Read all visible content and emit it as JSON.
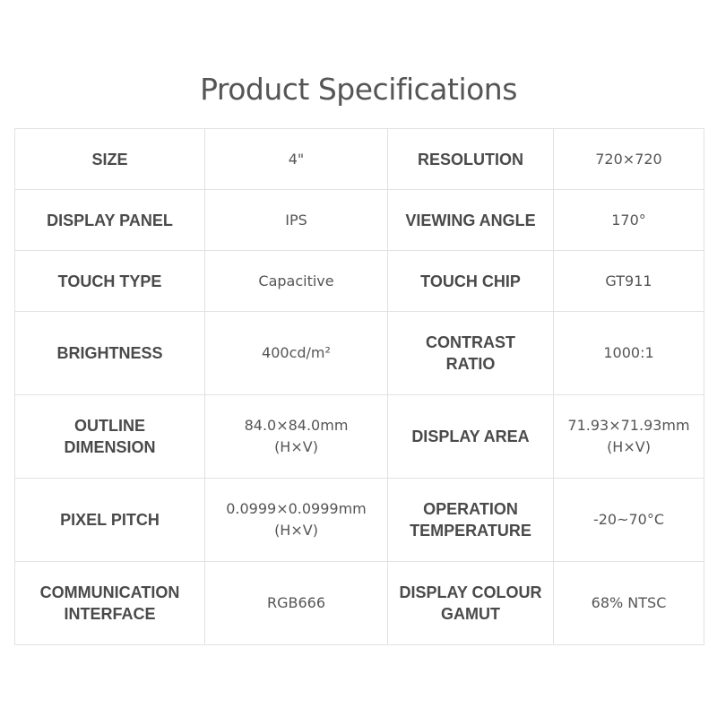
{
  "title": "Product Specifications",
  "rows": [
    [
      {
        "label": "SIZE",
        "value": [
          "4\""
        ]
      },
      {
        "label": "RESOLUTION",
        "value": [
          "720×720"
        ]
      }
    ],
    [
      {
        "label": "DISPLAY PANEL",
        "value": [
          "IPS"
        ]
      },
      {
        "label": "VIEWING ANGLE",
        "value": [
          "170°"
        ]
      }
    ],
    [
      {
        "label": "TOUCH TYPE",
        "value": [
          "Capacitive"
        ]
      },
      {
        "label": "TOUCH CHIP",
        "value": [
          "GT911"
        ]
      }
    ],
    [
      {
        "label": "BRIGHTNESS",
        "value": [
          "400cd/m²"
        ]
      },
      {
        "label": "CONTRAST RATIO",
        "value": [
          "1000:1"
        ]
      }
    ],
    [
      {
        "label": "OUTLINE DIMENSION",
        "value": [
          "84.0×84.0mm",
          "(H×V)"
        ]
      },
      {
        "label": "DISPLAY AREA",
        "value": [
          "71.93×71.93mm",
          "(H×V)"
        ]
      }
    ],
    [
      {
        "label": "PIXEL PITCH",
        "value": [
          "0.0999×0.0999mm",
          "(H×V)"
        ]
      },
      {
        "label": "OPERATION TEMPERATURE",
        "value": [
          "-20~70°C"
        ]
      }
    ],
    [
      {
        "label": "COMMUNICATION INTERFACE",
        "value": [
          "RGB666"
        ]
      },
      {
        "label": "DISPLAY COLOUR GAMUT",
        "value": [
          "68% NTSC"
        ]
      }
    ]
  ]
}
